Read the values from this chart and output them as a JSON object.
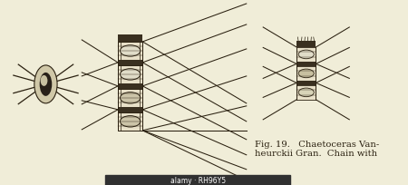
{
  "bg_color": "#f0edd8",
  "fig_width": 4.5,
  "fig_height": 2.05,
  "caption_text": "Fig. 19.   Chaetoceras Van-\nheurckii Gran.  Chain with",
  "caption_fontsize": 7.2,
  "ink": "#2a2010",
  "dark_band": "#3a3020",
  "cell_fill": "#e8e0c8",
  "ell_fill_light": "#d8d0b0",
  "ell_fill_dark": "#282010"
}
